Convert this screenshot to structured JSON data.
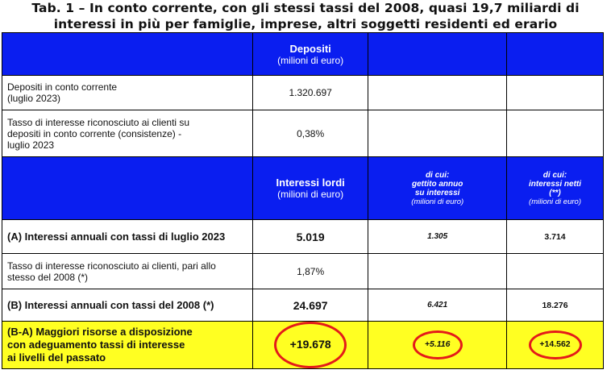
{
  "title": {
    "line1": "Tab. 1 – In conto corrente, con gli stessi tassi del 2008, quasi 19,7 miliardi di",
    "line2": "interessi in più per famiglie, imprese, altri soggetti residenti ed erario"
  },
  "header1": {
    "col2_label": "Depositi",
    "col2_sub": "(milioni di euro)"
  },
  "rows_top": [
    {
      "label_line1": "Depositi in conto corrente",
      "label_line2": "(luglio 2023)",
      "value": "1.320.697"
    },
    {
      "label_line1": "Tasso di interesse riconosciuto ai clienti su",
      "label_line2": "depositi in conto corrente (consistenze) -",
      "label_line3": "luglio 2023",
      "value": "0,38%"
    }
  ],
  "header2": {
    "col2_label": "Interessi lordi",
    "col2_sub": "(milioni di euro)",
    "col3_line1": "di cui:",
    "col3_line2": "gettito annuo",
    "col3_line3": "su interessi",
    "col3_sub": "(milioni di euro)",
    "col4_line1": "di cui:",
    "col4_line2": "interessi netti",
    "col4_line3": "(**)",
    "col4_sub": "(milioni di euro)"
  },
  "row_a": {
    "label": "(A) Interessi annuali con tassi di luglio 2023",
    "lordi": "5.019",
    "gettito": "1.305",
    "netti": "3.714"
  },
  "row_rate2008": {
    "label_line1": "Tasso di interesse riconosciuto ai clienti, pari allo",
    "label_line2": "stesso del 2008 (*)",
    "value": "1,87%"
  },
  "row_b": {
    "label": "(B) Interessi annuali con tassi del 2008 (*)",
    "lordi": "24.697",
    "gettito": "6.421",
    "netti": "18.276"
  },
  "row_diff": {
    "label_line1": "(B-A) Maggiori risorse a disposizione",
    "label_line2": "con adeguamento tassi di interesse",
    "label_line3": "ai livelli del passato",
    "lordi": "+19.678",
    "gettito": "+5.116",
    "netti": "+14.562"
  },
  "colors": {
    "header_blue": "#0a1ef0",
    "highlight_yellow": "#ffff22",
    "circle_red": "#e41a1a"
  }
}
